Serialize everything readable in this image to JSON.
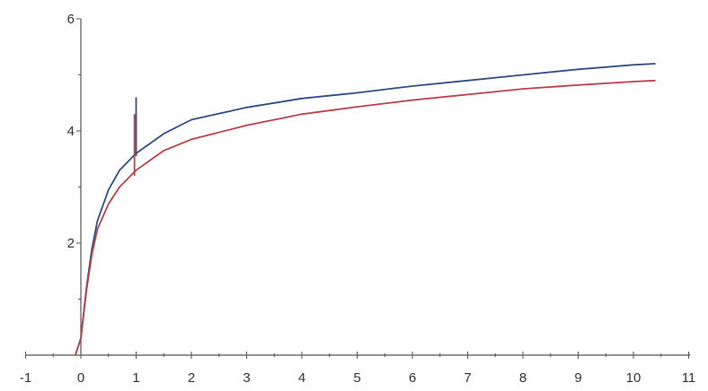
{
  "chart_data": {
    "type": "line",
    "title": "",
    "xlabel": "",
    "ylabel": "",
    "xlim": [
      -1,
      11
    ],
    "ylim": [
      0,
      6
    ],
    "x_ticks": [
      -1,
      0,
      1,
      2,
      3,
      4,
      5,
      6,
      7,
      8,
      9,
      10,
      11
    ],
    "y_ticks": [
      2,
      4,
      6
    ],
    "grid": false,
    "legend": "none",
    "series": [
      {
        "color": "#2f4f86",
        "x": [
          -0.1,
          0.0,
          0.1,
          0.2,
          0.3,
          0.5,
          0.7,
          1.0,
          1.5,
          2.0,
          3.0,
          4.0,
          5.0,
          6.0,
          7.0,
          8.0,
          9.0,
          10.0,
          10.4
        ],
        "y": [
          0.0,
          0.3,
          1.2,
          1.9,
          2.4,
          2.95,
          3.3,
          3.6,
          3.95,
          4.2,
          4.42,
          4.58,
          4.68,
          4.8,
          4.9,
          5.0,
          5.1,
          5.18,
          5.2
        ],
        "spike": {
          "x": 1.0,
          "y_from": 3.55,
          "y_to": 4.6
        }
      },
      {
        "color": "#c0404a",
        "x": [
          -0.1,
          0.0,
          0.1,
          0.2,
          0.3,
          0.5,
          0.7,
          1.0,
          1.5,
          2.0,
          3.0,
          4.0,
          5.0,
          6.0,
          7.0,
          8.0,
          9.0,
          10.0,
          10.4
        ],
        "y": [
          0.0,
          0.3,
          1.15,
          1.8,
          2.25,
          2.7,
          3.0,
          3.3,
          3.65,
          3.85,
          4.1,
          4.3,
          4.43,
          4.55,
          4.65,
          4.75,
          4.82,
          4.88,
          4.9
        ],
        "spike": {
          "x": 0.97,
          "y_from": 3.2,
          "y_to": 4.3
        }
      }
    ]
  }
}
